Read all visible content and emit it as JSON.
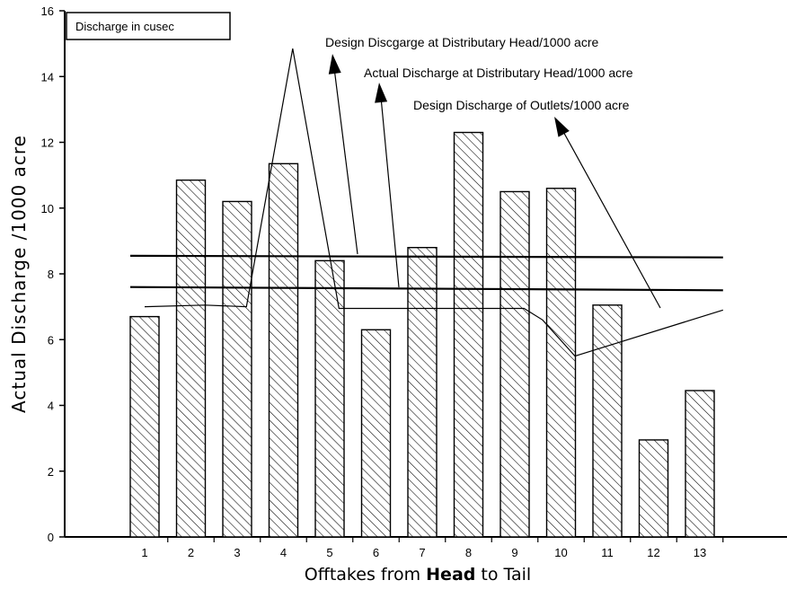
{
  "chart_data": {
    "type": "bar",
    "categories": [
      "1",
      "2",
      "3",
      "4",
      "5",
      "6",
      "7",
      "8",
      "9",
      "10",
      "11",
      "12",
      "13"
    ],
    "values": [
      6.7,
      10.85,
      10.2,
      11.35,
      8.4,
      6.3,
      8.8,
      12.3,
      10.5,
      10.6,
      7.05,
      2.95,
      4.45
    ],
    "lines": [
      {
        "name": "Design Discgarge at Distributary Head/1000 acre",
        "x": [
          1,
          13.5
        ],
        "y": [
          8.55,
          8.5
        ]
      },
      {
        "name": "Actual Discharge at Distributary Head/1000 acre",
        "x": [
          1,
          13.5
        ],
        "y": [
          7.6,
          7.5
        ]
      },
      {
        "name": "Design Discharge of Outlets/1000 acre",
        "x": [
          1,
          2.3,
          3.2,
          4.2,
          5.2,
          6.5,
          8,
          9.2,
          9.6,
          10.3,
          13.5
        ],
        "y": [
          7.0,
          7.05,
          7.0,
          14.85,
          6.95,
          6.95,
          6.95,
          6.95,
          6.6,
          5.5,
          6.9
        ]
      }
    ],
    "ylim": [
      0,
      16
    ],
    "yticks": [
      "0",
      "2",
      "4",
      "6",
      "8",
      "10",
      "12",
      "14",
      "16"
    ],
    "ylabel": "Actual Discharge /1000 acre",
    "xlabel_parts": [
      "Offtakes from ",
      "Head",
      " to Tail"
    ],
    "box_label": "Discharge in cusec",
    "bar_fill": "hatched"
  }
}
